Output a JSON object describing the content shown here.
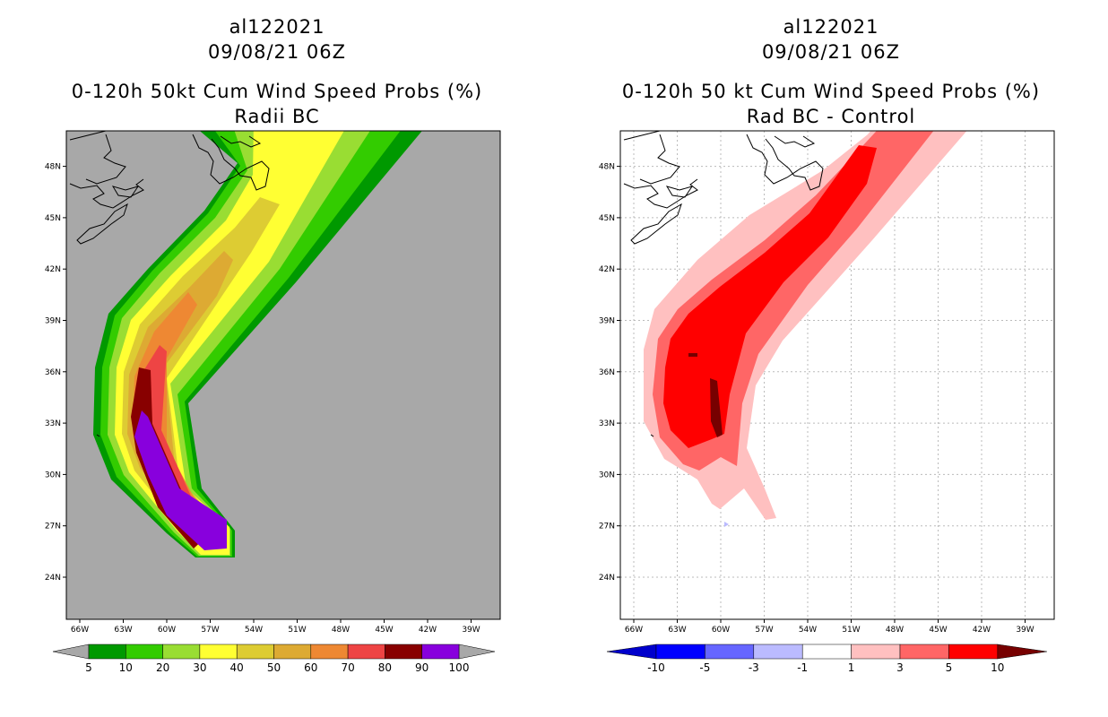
{
  "left_panel": {
    "title_line1": "al122021",
    "title_line2": "09/08/21 06Z",
    "title_line3": "0-120h 50kt Cum Wind Speed Probs (%)",
    "title_line4": "Radii BC",
    "background_color": "#a8a8a8",
    "lon_ticks": [
      "66W",
      "63W",
      "60W",
      "57W",
      "54W",
      "51W",
      "48W",
      "45W",
      "42W",
      "39W"
    ],
    "lat_ticks": [
      "24N",
      "27N",
      "30N",
      "33N",
      "36N",
      "39N",
      "42N",
      "45N",
      "48N"
    ],
    "colorbar": {
      "labels": [
        "5",
        "10",
        "20",
        "30",
        "40",
        "50",
        "60",
        "70",
        "80",
        "90",
        "100"
      ],
      "colors": [
        "#009900",
        "#33cc00",
        "#99dd33",
        "#ffff33",
        "#ddcc33",
        "#ddaa33",
        "#ee8833",
        "#ee4444",
        "#880000",
        "#8800dd"
      ]
    }
  },
  "right_panel": {
    "title_line1": "al122021",
    "title_line2": "09/08/21 06Z",
    "title_line3": "0-120h 50 kt Cum Wind Speed Probs (%)",
    "title_line4": "Rad BC - Control",
    "background_color": "#ffffff",
    "lon_ticks": [
      "66W",
      "63W",
      "60W",
      "57W",
      "54W",
      "51W",
      "48W",
      "45W",
      "42W",
      "39W"
    ],
    "lat_ticks": [
      "24N",
      "27N",
      "30N",
      "33N",
      "36N",
      "39N",
      "42N",
      "45N",
      "48N"
    ],
    "colorbar": {
      "labels": [
        "-10",
        "-5",
        "-3",
        "-1",
        "1",
        "3",
        "5",
        "10"
      ],
      "colors": [
        "#0000cc",
        "#0000ff",
        "#6666ff",
        "#bbbbff",
        "#ffffff",
        "#ffc0c0",
        "#ff6666",
        "#ff0000",
        "#770000"
      ]
    }
  }
}
